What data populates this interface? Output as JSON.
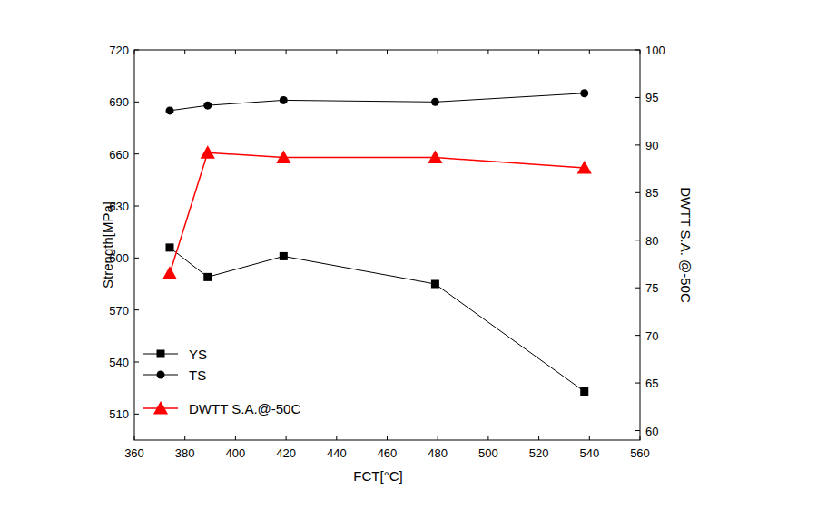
{
  "chart_data": {
    "type": "line",
    "x_label": "FCT[°C]",
    "y_label": "Strength[MPa]",
    "y2_label": "DWTT S.A. @-50C",
    "x": [
      374,
      389,
      419,
      479,
      538
    ],
    "xlim": [
      360,
      560
    ],
    "xticks": [
      360,
      380,
      400,
      420,
      440,
      460,
      480,
      500,
      520,
      540,
      560
    ],
    "ylim": [
      495,
      720
    ],
    "yticks": [
      510,
      540,
      570,
      600,
      630,
      660,
      690,
      720
    ],
    "y2lim": [
      59,
      100
    ],
    "y2ticks": [
      60,
      65,
      70,
      75,
      80,
      85,
      90,
      95,
      100
    ],
    "legend": "lower left",
    "grid": false,
    "series": [
      {
        "name": "YS",
        "color": "#000000",
        "marker": "square",
        "values": [
          606,
          589,
          601,
          585,
          523
        ]
      },
      {
        "name": "TS",
        "color": "#000000",
        "marker": "circle",
        "values": [
          685,
          688,
          691,
          690,
          695
        ]
      },
      {
        "name": "DWTT S.A.@-50C",
        "color": "#ff0000",
        "marker": "triangle",
        "axis": "y2",
        "values": [
          76.5,
          89.2,
          88.7,
          88.7,
          87.6
        ]
      }
    ]
  }
}
